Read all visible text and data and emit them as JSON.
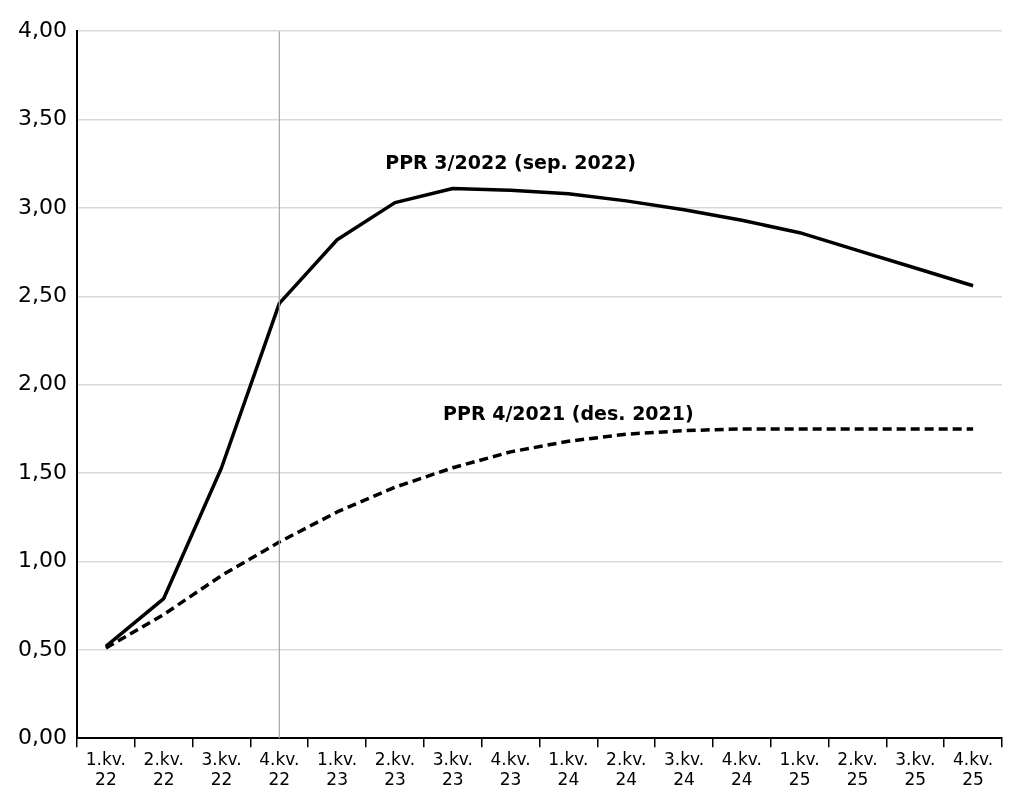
{
  "chart_data": {
    "type": "line",
    "categories": [
      "1.kv. 22",
      "2.kv. 22",
      "3.kv. 22",
      "4.kv. 22",
      "1.kv. 23",
      "2.kv. 23",
      "3.kv. 23",
      "4.kv. 23",
      "1.kv. 24",
      "2.kv. 24",
      "3.kv. 24",
      "4.kv. 24",
      "1.kv. 25",
      "2.kv. 25",
      "3.kv. 25",
      "4.kv. 25"
    ],
    "series": [
      {
        "name": "PPR 3/2022 (sep. 2022)",
        "color": "#000000",
        "line_style": "solid",
        "values": [
          0.52,
          0.79,
          1.53,
          2.46,
          2.82,
          3.03,
          3.11,
          3.1,
          3.08,
          3.04,
          2.99,
          2.93,
          2.86,
          2.76,
          2.66,
          2.56
        ]
      },
      {
        "name": "PPR 4/2021 (des. 2021)",
        "color": "#000000",
        "line_style": "dashed",
        "values": [
          0.51,
          0.7,
          0.92,
          1.11,
          1.28,
          1.42,
          1.53,
          1.62,
          1.68,
          1.72,
          1.74,
          1.75,
          1.75,
          1.75,
          1.75,
          1.75
        ]
      }
    ],
    "ylim": [
      0,
      4
    ],
    "yticks": [
      {
        "value": 0,
        "label": "0,00"
      },
      {
        "value": 0.5,
        "label": "0,50"
      },
      {
        "value": 1,
        "label": "1,00"
      },
      {
        "value": 1.5,
        "label": "1,50"
      },
      {
        "value": 2,
        "label": "2,00"
      },
      {
        "value": 2.5,
        "label": "2,50"
      },
      {
        "value": 3,
        "label": "3,00"
      },
      {
        "value": 3.5,
        "label": "3,50"
      },
      {
        "value": 4,
        "label": "4,00"
      }
    ],
    "grid": "y",
    "legend": false,
    "marker": "none",
    "ref_lines": [
      {
        "axis": "x",
        "value": "4.kv. 22",
        "color": "#a6a6a6"
      }
    ]
  }
}
